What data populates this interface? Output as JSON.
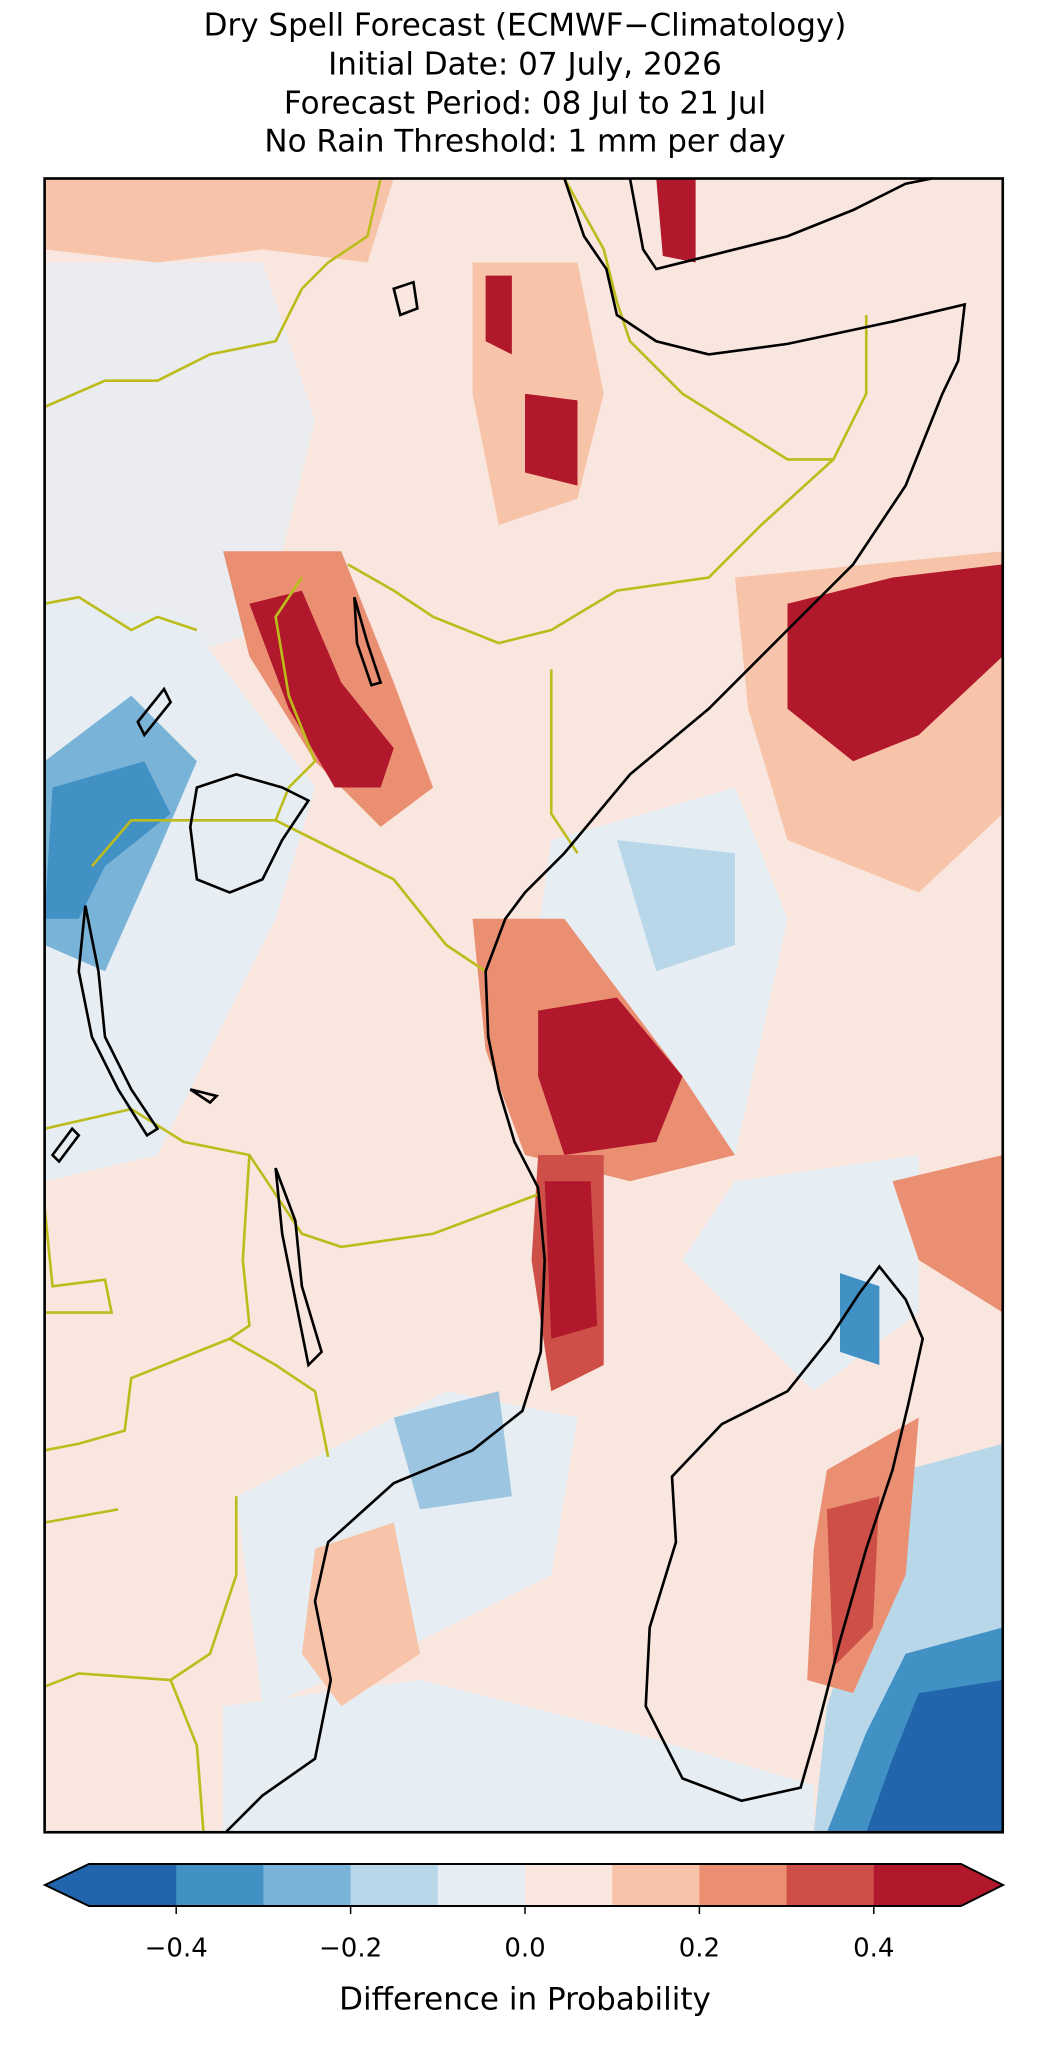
{
  "title": [
    "Dry Spell Forecast (ECMWF−Climatology)",
    "Initial Date: 07 July, 2026",
    "Forecast Period: 08 Jul to 21 Jul",
    "No Rain Threshold: 1 mm per day"
  ],
  "colorbar": {
    "label": "Difference in Probability",
    "boundaries": [
      -0.5,
      -0.4,
      -0.3,
      -0.2,
      -0.1,
      0,
      0.1,
      0.2,
      0.3,
      0.4,
      0.5
    ],
    "colors": [
      "#2166ac",
      "#4291c5",
      "#7ab3d8",
      "#b8d8ea",
      "#e6eef4",
      "#f9e7df",
      "#f7c4aa",
      "#ea8f72",
      "#cd4f48",
      "#b2182b"
    ],
    "extend": "both",
    "ticks": [
      {
        "value": -0.4,
        "label": "−0.4"
      },
      {
        "value": -0.2,
        "label": "−0.2"
      },
      {
        "value": 0,
        "label": "0.0"
      },
      0.2,
      0.4
    ]
  }
}
